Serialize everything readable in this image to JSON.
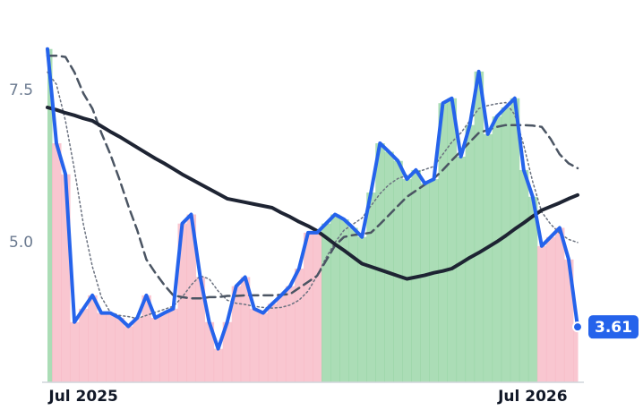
{
  "chart_data": {
    "type": "line",
    "categories": [
      null,
      null,
      null,
      null,
      "Jul 2025",
      null,
      null,
      null,
      null,
      null,
      null,
      null,
      null,
      null,
      null,
      null,
      null,
      null,
      null,
      null,
      null,
      null,
      null,
      null,
      null,
      null,
      null,
      null,
      null,
      null,
      null,
      null,
      null,
      null,
      null,
      null,
      null,
      null,
      null,
      null,
      null,
      null,
      null,
      null,
      null,
      null,
      null,
      null,
      null,
      null,
      null,
      null,
      null,
      null,
      "Jul 2026",
      null,
      null,
      null,
      null,
      null
    ],
    "series": [
      {
        "color": "#2563eb",
        "style": "solid",
        "width": 4,
        "values": [
          8.18,
          6.63,
          6.12,
          3.69,
          3.91,
          4.13,
          3.84,
          3.84,
          3.76,
          3.62,
          3.76,
          4.13,
          3.76,
          3.84,
          3.91,
          5.31,
          5.46,
          4.43,
          3.69,
          3.25,
          3.69,
          4.28,
          4.43,
          3.91,
          3.84,
          3.99,
          4.13,
          4.28,
          4.57,
          5.16,
          5.16,
          5.31,
          5.46,
          5.38,
          5.24,
          5.09,
          5.82,
          6.63,
          6.49,
          6.34,
          6.04,
          6.19,
          5.97,
          6.04,
          7.29,
          7.37,
          6.41,
          6.93,
          7.81,
          6.78,
          7.07,
          7.22,
          7.37,
          6.19,
          5.75,
          4.94,
          5.09,
          5.24,
          4.72,
          3.61
        ]
      },
      {
        "color": "#1e2433",
        "style": "solid",
        "width": 4,
        "values": [
          7.22,
          7.18,
          7.13,
          7.09,
          7.04,
          7.0,
          6.91,
          6.82,
          6.74,
          6.65,
          6.56,
          6.47,
          6.38,
          6.3,
          6.21,
          6.12,
          6.04,
          5.96,
          5.88,
          5.8,
          5.72,
          5.69,
          5.66,
          5.63,
          5.6,
          5.57,
          5.49,
          5.42,
          5.34,
          5.27,
          5.19,
          5.08,
          4.97,
          4.87,
          4.76,
          4.65,
          4.6,
          4.55,
          4.5,
          4.45,
          4.4,
          4.43,
          4.46,
          4.5,
          4.53,
          4.57,
          4.66,
          4.75,
          4.83,
          4.92,
          5.01,
          5.11,
          5.22,
          5.32,
          5.43,
          5.53,
          5.59,
          5.65,
          5.72,
          5.78
        ]
      },
      {
        "color": "#4b5563",
        "style": "dashed",
        "width": 2.5,
        "values": [
          8.07,
          8.07,
          8.05,
          7.8,
          7.45,
          7.2,
          6.8,
          6.45,
          6.04,
          5.6,
          5.2,
          4.72,
          4.5,
          4.3,
          4.13,
          4.1,
          4.08,
          4.08,
          4.1,
          4.1,
          4.12,
          4.12,
          4.13,
          4.13,
          4.13,
          4.13,
          4.14,
          4.15,
          4.25,
          4.35,
          4.45,
          4.7,
          4.95,
          5.09,
          5.12,
          5.14,
          5.16,
          5.3,
          5.45,
          5.6,
          5.75,
          5.85,
          5.95,
          6.05,
          6.19,
          6.35,
          6.5,
          6.65,
          6.8,
          6.85,
          6.9,
          6.93,
          6.93,
          6.93,
          6.92,
          6.9,
          6.7,
          6.45,
          6.3,
          6.22
        ]
      },
      {
        "color": "#6b7280",
        "style": "dotted",
        "width": 1.5,
        "values": [
          7.8,
          7.6,
          7.0,
          6.2,
          5.3,
          4.6,
          4.1,
          3.85,
          3.8,
          3.78,
          3.75,
          3.8,
          3.85,
          3.9,
          3.95,
          4.1,
          4.3,
          4.45,
          4.4,
          4.2,
          4.05,
          4.0,
          3.98,
          3.95,
          3.93,
          3.92,
          3.93,
          3.97,
          4.05,
          4.2,
          4.45,
          4.75,
          5.0,
          5.2,
          5.3,
          5.4,
          5.6,
          5.8,
          5.95,
          6.05,
          6.1,
          6.15,
          6.2,
          6.25,
          6.45,
          6.65,
          6.8,
          7.0,
          7.2,
          7.25,
          7.28,
          7.3,
          7.1,
          6.6,
          6.0,
          5.5,
          5.3,
          5.15,
          5.05,
          5.0
        ]
      }
    ],
    "up_color": "#8fd19e",
    "down_color": "#f7b3c0",
    "ylim": [
      2.7,
      8.25
    ],
    "yticks": [
      {
        "value": 5,
        "label": "5.0"
      },
      {
        "value": 7.5,
        "label": "7.5"
      }
    ],
    "grid": false
  }
}
